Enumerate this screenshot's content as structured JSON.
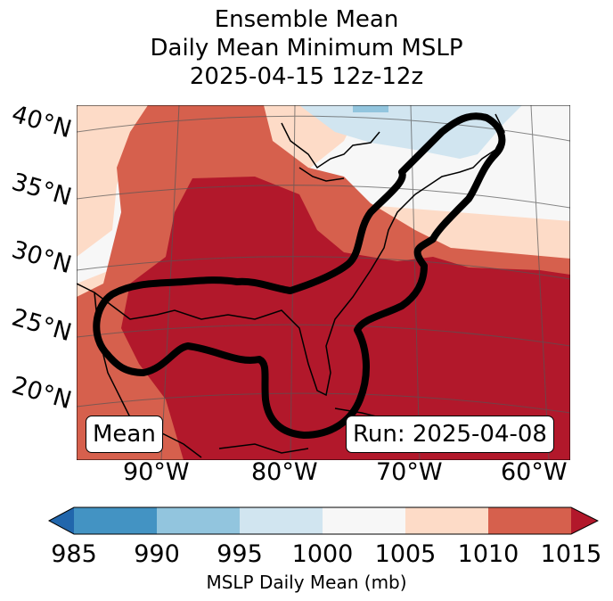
{
  "title": {
    "line1": "Ensemble Mean",
    "line2": "Daily Mean Minimum MSLP",
    "line3": "2025-04-15 12z-12z"
  },
  "map": {
    "lat_labels": [
      "40°N",
      "35°N",
      "30°N",
      "25°N",
      "20°N"
    ],
    "lon_labels": [
      "90°W",
      "80°W",
      "70°W",
      "60°W"
    ],
    "mean_label": "Mean",
    "run_label": "Run: 2025-04-08"
  },
  "colorbar": {
    "ticks": [
      "985",
      "990",
      "995",
      "1000",
      "1005",
      "1010",
      "1015"
    ],
    "label": "MSLP Daily Mean (mb)",
    "colors": [
      "#2166ac",
      "#4393c3",
      "#92c5de",
      "#d1e5f0",
      "#f7f7f7",
      "#fddbc7",
      "#d6604d",
      "#b2182b"
    ]
  }
}
